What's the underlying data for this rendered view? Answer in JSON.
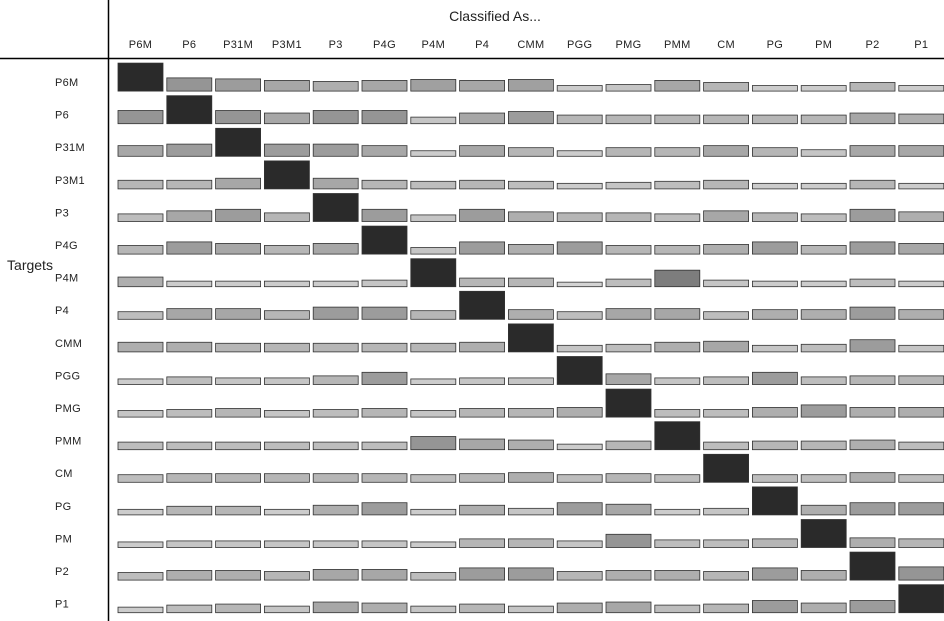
{
  "chart_data": {
    "type": "heatmap",
    "title": "",
    "column_header": "Classified As...",
    "row_header": "Targets",
    "columns": [
      "P6M",
      "P6",
      "P31M",
      "P3M1",
      "P3",
      "P4G",
      "P4M",
      "P4",
      "CMM",
      "PGG",
      "PMG",
      "PMM",
      "CM",
      "PG",
      "PM",
      "P2",
      "P1"
    ],
    "rows": [
      "P6M",
      "P6",
      "P31M",
      "P3M1",
      "P3",
      "P4G",
      "P4M",
      "P4",
      "CMM",
      "PGG",
      "PMG",
      "PMM",
      "CM",
      "PG",
      "PM",
      "P2",
      "P1"
    ],
    "value_range": [
      0,
      1
    ],
    "color_ramp": [
      "#e2e2e2",
      "#2a2a2a"
    ],
    "values": [
      [
        1.0,
        0.42,
        0.38,
        0.32,
        0.28,
        0.32,
        0.36,
        0.32,
        0.36,
        0.12,
        0.16,
        0.32,
        0.24,
        0.12,
        0.12,
        0.24,
        0.12
      ],
      [
        0.42,
        1.0,
        0.42,
        0.32,
        0.42,
        0.42,
        0.16,
        0.32,
        0.38,
        0.24,
        0.24,
        0.24,
        0.24,
        0.24,
        0.24,
        0.32,
        0.28
      ],
      [
        0.32,
        0.38,
        1.0,
        0.38,
        0.38,
        0.32,
        0.12,
        0.32,
        0.24,
        0.12,
        0.24,
        0.24,
        0.32,
        0.24,
        0.16,
        0.32,
        0.32
      ],
      [
        0.24,
        0.24,
        0.32,
        1.0,
        0.32,
        0.24,
        0.2,
        0.24,
        0.2,
        0.12,
        0.16,
        0.2,
        0.24,
        0.12,
        0.12,
        0.24,
        0.12
      ],
      [
        0.2,
        0.32,
        0.38,
        0.24,
        1.0,
        0.38,
        0.16,
        0.38,
        0.28,
        0.24,
        0.24,
        0.2,
        0.32,
        0.24,
        0.2,
        0.38,
        0.28
      ],
      [
        0.24,
        0.38,
        0.32,
        0.24,
        0.32,
        1.0,
        0.16,
        0.38,
        0.28,
        0.38,
        0.24,
        0.24,
        0.28,
        0.38,
        0.24,
        0.38,
        0.32
      ],
      [
        0.28,
        0.12,
        0.12,
        0.12,
        0.12,
        0.16,
        1.0,
        0.24,
        0.24,
        0.08,
        0.2,
        0.55,
        0.16,
        0.12,
        0.12,
        0.2,
        0.12
      ],
      [
        0.2,
        0.32,
        0.32,
        0.24,
        0.38,
        0.38,
        0.24,
        1.0,
        0.28,
        0.2,
        0.32,
        0.32,
        0.2,
        0.28,
        0.28,
        0.38,
        0.28
      ],
      [
        0.28,
        0.28,
        0.24,
        0.24,
        0.24,
        0.24,
        0.24,
        0.28,
        1.0,
        0.16,
        0.2,
        0.28,
        0.32,
        0.16,
        0.2,
        0.38,
        0.16
      ],
      [
        0.12,
        0.2,
        0.16,
        0.16,
        0.24,
        0.38,
        0.12,
        0.16,
        0.16,
        1.0,
        0.32,
        0.16,
        0.2,
        0.38,
        0.2,
        0.24,
        0.24
      ],
      [
        0.16,
        0.2,
        0.24,
        0.16,
        0.2,
        0.24,
        0.16,
        0.24,
        0.24,
        0.28,
        1.0,
        0.2,
        0.2,
        0.28,
        0.38,
        0.28,
        0.28
      ],
      [
        0.2,
        0.2,
        0.2,
        0.2,
        0.2,
        0.2,
        0.42,
        0.32,
        0.28,
        0.12,
        0.24,
        1.0,
        0.2,
        0.24,
        0.24,
        0.28,
        0.2
      ],
      [
        0.2,
        0.24,
        0.24,
        0.24,
        0.24,
        0.24,
        0.2,
        0.24,
        0.28,
        0.2,
        0.24,
        0.2,
        1.0,
        0.2,
        0.2,
        0.28,
        0.2
      ],
      [
        0.12,
        0.24,
        0.24,
        0.12,
        0.28,
        0.38,
        0.12,
        0.28,
        0.16,
        0.38,
        0.32,
        0.12,
        0.16,
        1.0,
        0.28,
        0.38,
        0.38
      ],
      [
        0.12,
        0.16,
        0.16,
        0.16,
        0.16,
        0.16,
        0.12,
        0.24,
        0.24,
        0.16,
        0.42,
        0.2,
        0.2,
        0.24,
        1.0,
        0.28,
        0.24
      ],
      [
        0.2,
        0.28,
        0.28,
        0.24,
        0.32,
        0.32,
        0.2,
        0.38,
        0.38,
        0.24,
        0.28,
        0.28,
        0.24,
        0.38,
        0.28,
        1.0,
        0.42
      ],
      [
        0.12,
        0.2,
        0.24,
        0.16,
        0.32,
        0.28,
        0.16,
        0.24,
        0.16,
        0.28,
        0.32,
        0.2,
        0.24,
        0.38,
        0.28,
        0.38,
        1.0
      ]
    ]
  }
}
